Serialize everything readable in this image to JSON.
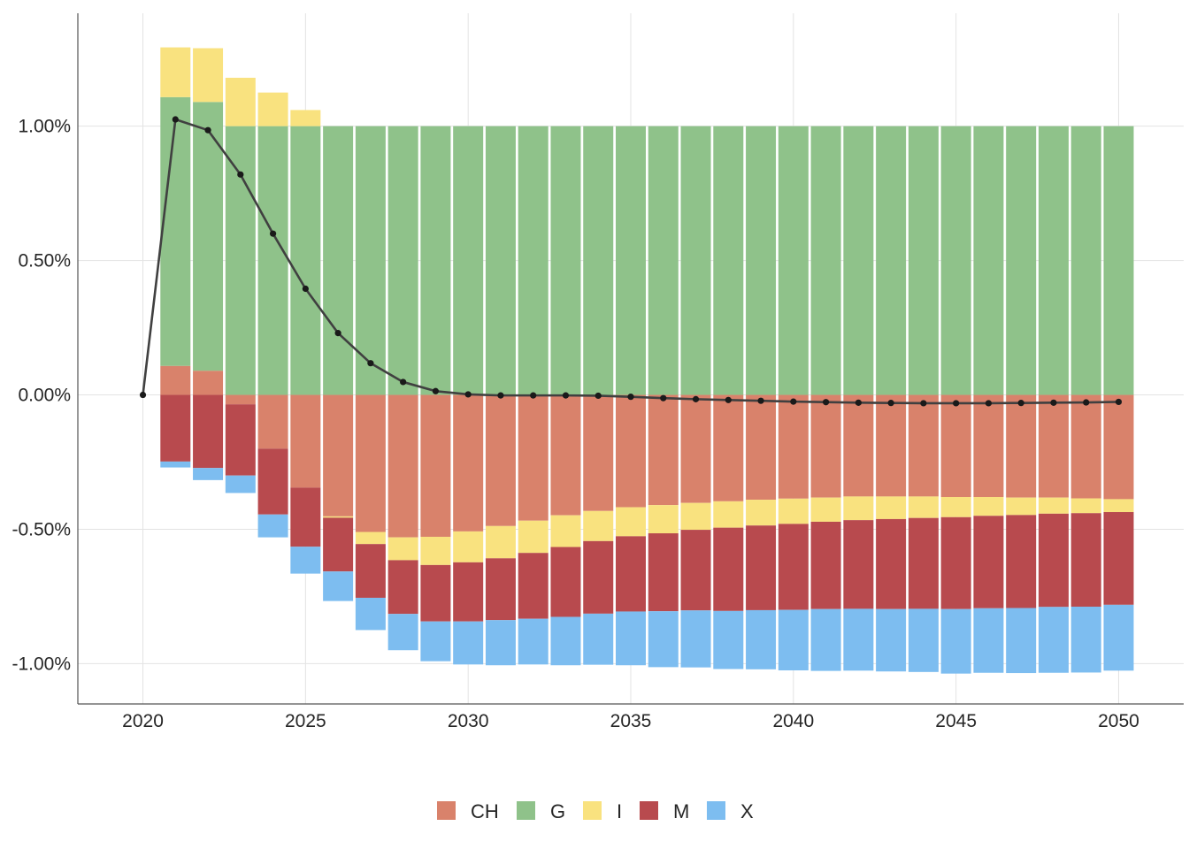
{
  "chart_data": {
    "type": "bar",
    "stacked": true,
    "x": [
      2020,
      2021,
      2022,
      2023,
      2024,
      2025,
      2026,
      2027,
      2028,
      2029,
      2030,
      2031,
      2032,
      2033,
      2034,
      2035,
      2036,
      2037,
      2038,
      2039,
      2040,
      2041,
      2042,
      2043,
      2044,
      2045,
      2046,
      2047,
      2048,
      2049,
      2050
    ],
    "series": [
      {
        "name": "CH",
        "color": "#d9826b",
        "values": [
          0,
          0.108,
          0.09,
          -0.035,
          -0.2,
          -0.345,
          -0.452,
          -0.51,
          -0.53,
          -0.528,
          -0.508,
          -0.488,
          -0.468,
          -0.448,
          -0.432,
          -0.418,
          -0.41,
          -0.402,
          -0.396,
          -0.39,
          -0.386,
          -0.382,
          -0.378,
          -0.378,
          -0.378,
          -0.38,
          -0.38,
          -0.382,
          -0.382,
          -0.385,
          -0.388
        ]
      },
      {
        "name": "G",
        "color": "#8fc28a",
        "values": [
          0,
          1.0,
          1.0,
          1.0,
          1.0,
          1.0,
          1.0,
          1.0,
          1.0,
          1.0,
          1.0,
          1.0,
          1.0,
          1.0,
          1.0,
          1.0,
          1.0,
          1.0,
          1.0,
          1.0,
          1.0,
          1.0,
          1.0,
          1.0,
          1.0,
          1.0,
          1.0,
          1.0,
          1.0,
          1.0,
          1.0
        ]
      },
      {
        "name": "I",
        "color": "#f9e27f",
        "values": [
          0,
          0.185,
          0.2,
          0.18,
          0.125,
          0.06,
          -0.005,
          -0.045,
          -0.085,
          -0.105,
          -0.115,
          -0.12,
          -0.12,
          -0.118,
          -0.112,
          -0.108,
          -0.105,
          -0.1,
          -0.098,
          -0.096,
          -0.094,
          -0.09,
          -0.088,
          -0.084,
          -0.08,
          -0.075,
          -0.07,
          -0.065,
          -0.06,
          -0.055,
          -0.048
        ]
      },
      {
        "name": "M",
        "color": "#b84a4e",
        "values": [
          0,
          -0.248,
          -0.272,
          -0.265,
          -0.245,
          -0.22,
          -0.2,
          -0.2,
          -0.2,
          -0.21,
          -0.22,
          -0.23,
          -0.245,
          -0.26,
          -0.27,
          -0.28,
          -0.29,
          -0.3,
          -0.31,
          -0.315,
          -0.32,
          -0.325,
          -0.33,
          -0.335,
          -0.338,
          -0.342,
          -0.344,
          -0.346,
          -0.347,
          -0.348,
          -0.345
        ]
      },
      {
        "name": "X",
        "color": "#7dbdf0",
        "values": [
          0,
          -0.022,
          -0.045,
          -0.065,
          -0.085,
          -0.1,
          -0.11,
          -0.12,
          -0.135,
          -0.148,
          -0.16,
          -0.168,
          -0.17,
          -0.18,
          -0.19,
          -0.2,
          -0.208,
          -0.212,
          -0.216,
          -0.22,
          -0.225,
          -0.23,
          -0.23,
          -0.232,
          -0.235,
          -0.24,
          -0.24,
          -0.242,
          -0.245,
          -0.245,
          -0.245
        ]
      }
    ],
    "line": {
      "color": "#404040",
      "values": [
        0,
        1.025,
        0.985,
        0.82,
        0.6,
        0.395,
        0.23,
        0.118,
        0.048,
        0.014,
        0.002,
        -0.002,
        -0.002,
        -0.002,
        -0.003,
        -0.007,
        -0.012,
        -0.016,
        -0.019,
        -0.022,
        -0.025,
        -0.027,
        -0.029,
        -0.03,
        -0.031,
        -0.031,
        -0.031,
        -0.03,
        -0.029,
        -0.028,
        -0.026
      ]
    },
    "xticks": [
      2020,
      2025,
      2030,
      2035,
      2040,
      2045,
      2050
    ],
    "yticks": [
      1.0,
      0.5,
      0.0,
      -0.5,
      -1.0
    ],
    "ytick_labels": [
      "1.00%",
      "0.50%",
      "0.00%",
      "-0.50%",
      "-1.00%"
    ],
    "ylim": [
      -1.15,
      1.42
    ],
    "xlim": [
      2018.0,
      2052.0
    ],
    "grid": true,
    "legend": {
      "placement": "bottom-center",
      "items": [
        "CH",
        "G",
        "I",
        "M",
        "X"
      ]
    },
    "title": "",
    "xlabel": "",
    "ylabel": ""
  }
}
